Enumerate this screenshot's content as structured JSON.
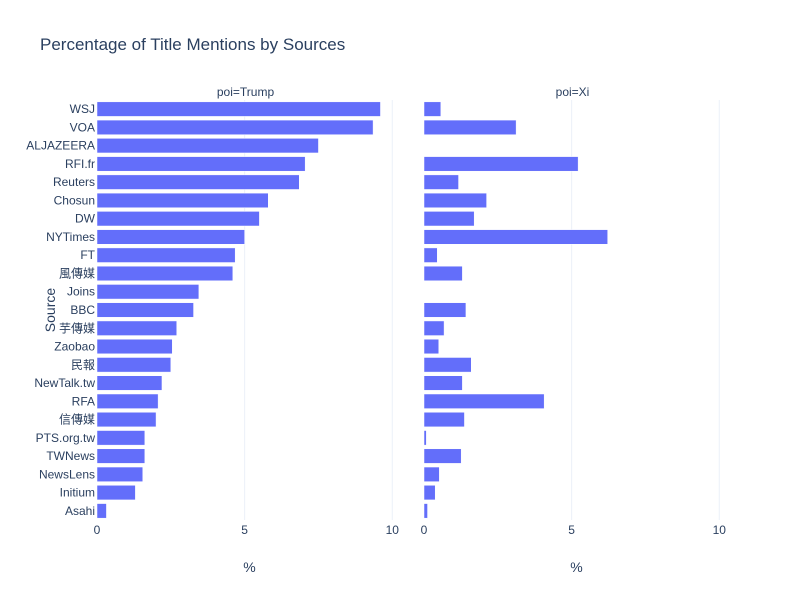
{
  "chart_data": {
    "type": "bar",
    "orientation": "horizontal",
    "title": "Percentage of Title Mentions by Sources",
    "ylabel": "Source",
    "xlabel": "%",
    "categories": [
      "WSJ",
      "VOA",
      "ALJAZEERA",
      "RFI.fr",
      "Reuters",
      "Chosun",
      "DW",
      "NYTimes",
      "FT",
      "風傳媒",
      "Joins",
      "BBC",
      "芋傳媒",
      "Zaobao",
      "民報",
      "NewTalk.tw",
      "RFA",
      "信傳媒",
      "PTS.org.tw",
      "TWNews",
      "NewsLens",
      "Initium",
      "Asahi"
    ],
    "xlim": [
      0,
      10.6
    ],
    "xticks": [
      "0",
      "5",
      "10"
    ],
    "xtick_values": [
      0,
      5,
      10
    ],
    "grid": true,
    "bar_color": "#636efa",
    "panels": [
      {
        "title": "poi=Trump",
        "values": [
          9.6,
          9.35,
          7.5,
          7.05,
          6.85,
          5.8,
          5.5,
          5.0,
          4.68,
          4.6,
          3.45,
          3.27,
          2.7,
          2.55,
          2.5,
          2.2,
          2.07,
          2.0,
          1.62,
          1.62,
          1.55,
          1.3,
          0.32
        ]
      },
      {
        "title": "poi=Xi",
        "values": [
          0.57,
          3.12,
          0,
          5.22,
          1.17,
          2.12,
          1.7,
          6.22,
          0.45,
          1.3,
          0,
          1.42,
          0.68,
          0.5,
          1.6,
          1.3,
          4.07,
          1.37,
          0.08,
          1.26,
          0.52,
          0.38,
          0.12
        ]
      }
    ]
  }
}
